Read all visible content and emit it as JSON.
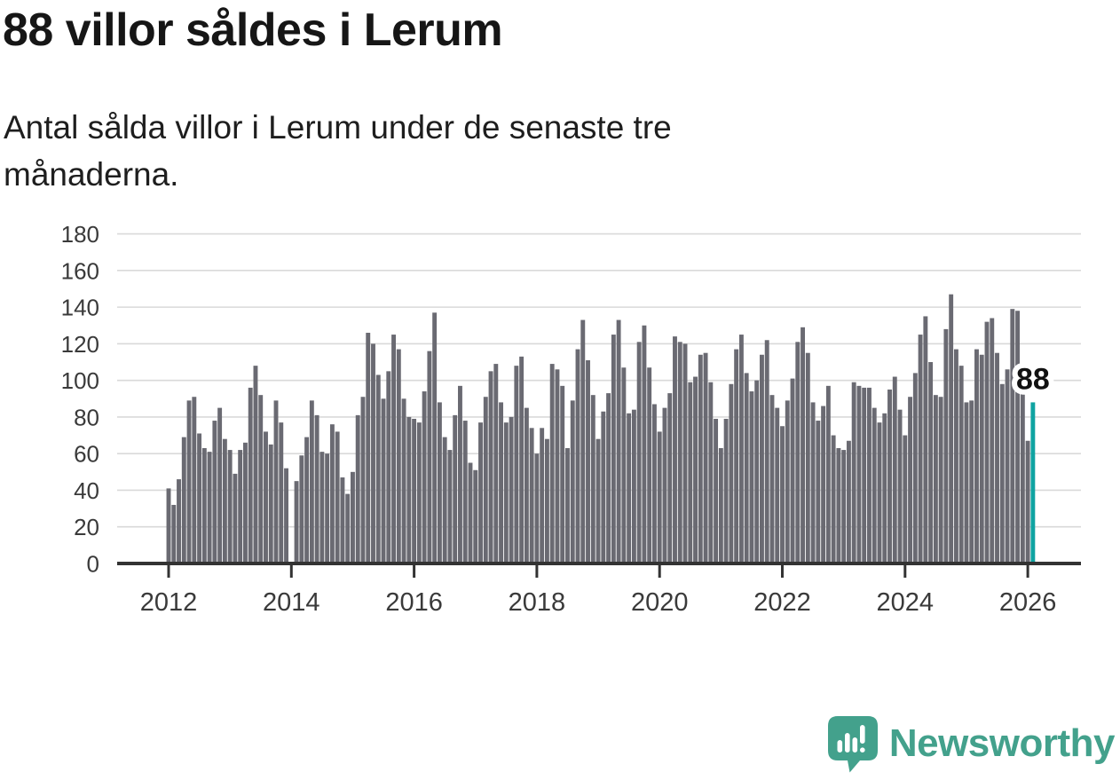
{
  "header": {
    "title": "88 villor såldes i Lerum",
    "subtitle_lines": [
      "Antal sålda villor i Lerum under de senaste tre",
      "månaderna."
    ]
  },
  "footer": {
    "logo_text": "Newsworthy"
  },
  "colors": {
    "bar": "#6a6a72",
    "highlight_bar": "#0fa3a1",
    "grid": "#d9d9d9",
    "axis": "#333333",
    "axis_text": "#3a3a3a",
    "annotation_text": "#111111",
    "logo": "#43a18c",
    "background": "#ffffff"
  },
  "chart_data": {
    "type": "bar",
    "title": "88 villor såldes i Lerum",
    "subtitle": "Antal sålda villor i Lerum under de senaste tre månaderna.",
    "xlabel": "",
    "ylabel": "",
    "ylim": [
      0,
      180
    ],
    "grid": true,
    "legend": false,
    "y_ticks": [
      0,
      20,
      40,
      60,
      80,
      100,
      120,
      140,
      160,
      180
    ],
    "x_ticks": [
      {
        "label": "2012",
        "month_index": 0
      },
      {
        "label": "2014",
        "month_index": 24
      },
      {
        "label": "2016",
        "month_index": 48
      },
      {
        "label": "2018",
        "month_index": 72
      },
      {
        "label": "2020",
        "month_index": 96
      },
      {
        "label": "2022",
        "month_index": 120
      },
      {
        "label": "2024",
        "month_index": 144
      },
      {
        "label": "2026",
        "month_index": 168
      }
    ],
    "values": [
      41,
      32,
      46,
      69,
      89,
      91,
      71,
      63,
      61,
      78,
      85,
      68,
      62,
      49,
      62,
      66,
      96,
      108,
      92,
      72,
      65,
      89,
      77,
      52,
      null,
      45,
      59,
      69,
      89,
      81,
      61,
      60,
      76,
      72,
      47,
      38,
      50,
      81,
      91,
      126,
      120,
      103,
      90,
      105,
      125,
      117,
      90,
      80,
      79,
      77,
      94,
      116,
      137,
      88,
      69,
      62,
      81,
      97,
      78,
      55,
      51,
      77,
      91,
      105,
      109,
      88,
      77,
      80,
      108,
      113,
      85,
      74,
      60,
      74,
      68,
      109,
      106,
      97,
      63,
      89,
      117,
      133,
      111,
      92,
      68,
      83,
      93,
      125,
      133,
      107,
      82,
      84,
      121,
      130,
      107,
      87,
      72,
      85,
      93,
      124,
      121,
      120,
      99,
      102,
      114,
      115,
      99,
      79,
      63,
      79,
      98,
      117,
      125,
      104,
      94,
      100,
      114,
      122,
      92,
      85,
      75,
      89,
      101,
      121,
      129,
      115,
      88,
      78,
      86,
      97,
      70,
      63,
      62,
      67,
      99,
      97,
      96,
      96,
      85,
      77,
      82,
      95,
      102,
      84,
      70,
      91,
      104,
      125,
      135,
      110,
      92,
      91,
      128,
      147,
      117,
      108,
      88,
      89,
      117,
      114,
      132,
      134,
      115,
      98,
      106,
      139,
      138,
      96,
      67,
      88
    ],
    "highlight": {
      "index": 169,
      "label": "88"
    }
  }
}
